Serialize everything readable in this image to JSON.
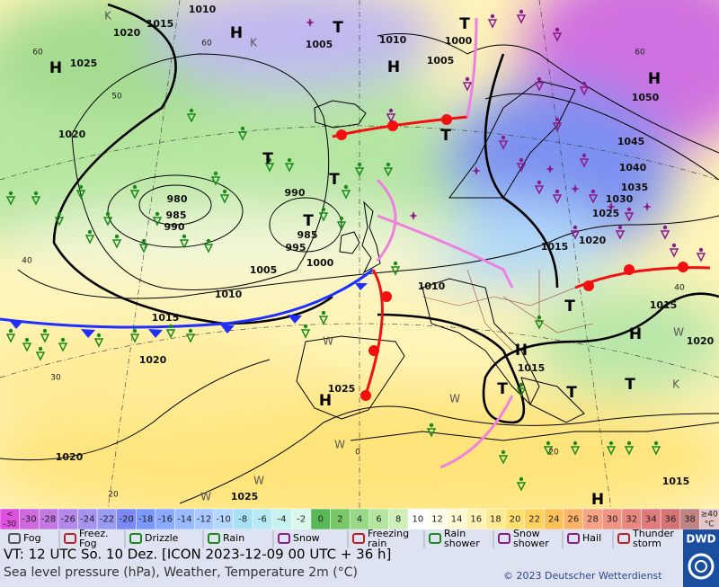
{
  "map": {
    "pressure_labels": [
      "1015",
      "1010",
      "1020",
      "1025",
      "1020",
      "1005",
      "1010",
      "1000",
      "1005",
      "1050",
      "1045",
      "1040",
      "1035",
      "1030",
      "1025",
      "1020",
      "1015",
      "980",
      "985",
      "990",
      "990",
      "985",
      "995",
      "1000",
      "1005",
      "1010",
      "1010",
      "1015",
      "1020",
      "1025",
      "1015",
      "1020",
      "1015",
      "1020",
      "1025",
      "1015"
    ],
    "temperature_labels": [
      "60",
      "60",
      "50",
      "40",
      "30",
      "20",
      "60",
      "40",
      "0",
      "20"
    ],
    "highs": [
      "H",
      "H",
      "H",
      "H",
      "H",
      "H",
      "H",
      "H"
    ],
    "lows": [
      "T",
      "T",
      "T",
      "T",
      "T",
      "T",
      "T",
      "T",
      "T",
      "T"
    ],
    "minor_labels": [
      "K",
      "K",
      "K",
      "W",
      "W",
      "W",
      "W",
      "W",
      "W"
    ]
  },
  "temperature_scale": [
    {
      "label": [
        "<",
        "-30"
      ],
      "color": "#e050e0"
    },
    {
      "label": [
        "-30"
      ],
      "color": "#d068e0"
    },
    {
      "label": [
        "-28"
      ],
      "color": "#c478e4"
    },
    {
      "label": [
        "-26"
      ],
      "color": "#b488ea"
    },
    {
      "label": [
        "-24"
      ],
      "color": "#a494f0"
    },
    {
      "label": [
        "-22"
      ],
      "color": "#9a9cf4"
    },
    {
      "label": [
        "-20"
      ],
      "color": "#7c88f4"
    },
    {
      "label": [
        "-18"
      ],
      "color": "#7c98fa"
    },
    {
      "label": [
        "-16"
      ],
      "color": "#88aaff"
    },
    {
      "label": [
        "-14"
      ],
      "color": "#98baff"
    },
    {
      "label": [
        "-12"
      ],
      "color": "#a8c8ff"
    },
    {
      "label": [
        "-10"
      ],
      "color": "#b4d8ff"
    },
    {
      "label": [
        "-8"
      ],
      "color": "#a8e0f4"
    },
    {
      "label": [
        "-6"
      ],
      "color": "#b8eaf4"
    },
    {
      "label": [
        "-4"
      ],
      "color": "#c8f2f0"
    },
    {
      "label": [
        "-2"
      ],
      "color": "#d8f8ec"
    },
    {
      "label": [
        "0"
      ],
      "color": "#58b858"
    },
    {
      "label": [
        "2"
      ],
      "color": "#78c868"
    },
    {
      "label": [
        "4"
      ],
      "color": "#98d888"
    },
    {
      "label": [
        "6"
      ],
      "color": "#b4e6a0"
    },
    {
      "label": [
        "8"
      ],
      "color": "#cef0b8"
    },
    {
      "label": [
        "10"
      ],
      "color": "#ffffff"
    },
    {
      "label": [
        "12"
      ],
      "color": "#fffff0"
    },
    {
      "label": [
        "14"
      ],
      "color": "#fffad4"
    },
    {
      "label": [
        "16"
      ],
      "color": "#fff2b4"
    },
    {
      "label": [
        "18"
      ],
      "color": "#ffea94"
    },
    {
      "label": [
        "20"
      ],
      "color": "#ffe070"
    },
    {
      "label": [
        "22"
      ],
      "color": "#ffd260"
    },
    {
      "label": [
        "24"
      ],
      "color": "#ffc258"
    },
    {
      "label": [
        "26"
      ],
      "color": "#ffb468"
    },
    {
      "label": [
        "28"
      ],
      "color": "#f8a484"
    },
    {
      "label": [
        "30"
      ],
      "color": "#f09484"
    },
    {
      "label": [
        "32"
      ],
      "color": "#e88880"
    },
    {
      "label": [
        "34"
      ],
      "color": "#e07c7c"
    },
    {
      "label": [
        "36"
      ],
      "color": "#d47474"
    },
    {
      "label": [
        "38"
      ],
      "color": "#c08484"
    },
    {
      "label": [
        "≥40",
        "°C"
      ],
      "color": "#e4c4c4"
    }
  ],
  "weather_legend": [
    [
      "Fog"
    ],
    [
      "Freez.",
      "Fog"
    ],
    [
      "Drizzle"
    ],
    [
      "Rain"
    ],
    [
      "Snow"
    ],
    [
      "Freezing",
      "rain"
    ],
    [
      "Rain",
      "shower"
    ],
    [
      "Snow",
      "shower"
    ],
    [
      "Hail"
    ],
    [
      "Thunder",
      "storm"
    ]
  ],
  "footer": {
    "valid_time": "VT: 12 UTC So.  10 Dez. [ICON 2023-12-09  00 UTC + 36 h]",
    "description": "Sea level pressure (hPa), Weather, Temperature 2m (°C)",
    "copyright": "© 2023 Deutscher Wetterdienst",
    "logo": "DWD"
  }
}
